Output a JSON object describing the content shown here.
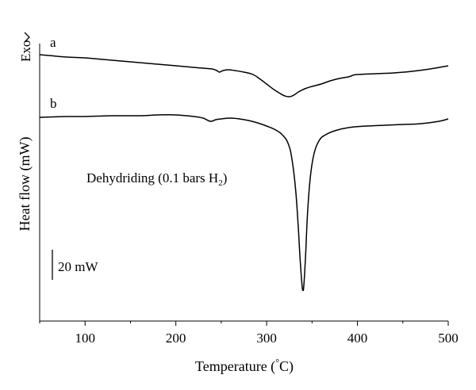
{
  "chart_data": {
    "type": "line",
    "xlabel": "Temperature (°C)",
    "xlabel_parts": {
      "pre": "Temperature (",
      "deg": "°",
      "post": "C)"
    },
    "ylabel": "Heat flow (mW)",
    "exo_label": "Exo",
    "annotation": {
      "pre": "Dehydriding (0.1 bars H",
      "sub": "2",
      "post": ")"
    },
    "scale_bar_label": "20 mW",
    "xlim": [
      50,
      500
    ],
    "x_ticks": [
      100,
      200,
      300,
      400,
      500
    ],
    "y_ticks": false,
    "grid": false,
    "series": [
      {
        "label": "a",
        "points": [
          [
            50,
            69
          ],
          [
            60,
            70
          ],
          [
            80,
            72
          ],
          [
            100,
            73
          ],
          [
            120,
            75
          ],
          [
            150,
            78
          ],
          [
            180,
            81
          ],
          [
            210,
            84
          ],
          [
            230,
            86
          ],
          [
            240,
            87
          ],
          [
            245,
            89
          ],
          [
            248,
            91
          ],
          [
            252,
            89
          ],
          [
            258,
            88
          ],
          [
            265,
            89
          ],
          [
            275,
            91
          ],
          [
            285,
            94
          ],
          [
            293,
            100
          ],
          [
            300,
            106
          ],
          [
            308,
            113
          ],
          [
            315,
            118
          ],
          [
            320,
            121
          ],
          [
            325,
            122
          ],
          [
            330,
            120
          ],
          [
            335,
            116
          ],
          [
            342,
            112
          ],
          [
            350,
            109
          ],
          [
            360,
            106
          ],
          [
            370,
            102
          ],
          [
            380,
            99
          ],
          [
            390,
            97
          ],
          [
            395,
            95
          ],
          [
            400,
            94
          ],
          [
            420,
            93
          ],
          [
            440,
            92
          ],
          [
            460,
            90
          ],
          [
            480,
            87
          ],
          [
            500,
            83
          ]
        ]
      },
      {
        "label": "b",
        "points": [
          [
            50,
            148
          ],
          [
            80,
            147
          ],
          [
            100,
            147
          ],
          [
            130,
            146
          ],
          [
            160,
            146
          ],
          [
            180,
            145
          ],
          [
            200,
            145
          ],
          [
            220,
            147
          ],
          [
            230,
            149
          ],
          [
            238,
            153
          ],
          [
            244,
            151
          ],
          [
            250,
            150
          ],
          [
            260,
            149
          ],
          [
            270,
            150
          ],
          [
            280,
            152
          ],
          [
            290,
            155
          ],
          [
            300,
            159
          ],
          [
            310,
            164
          ],
          [
            318,
            171
          ],
          [
            324,
            182
          ],
          [
            328,
            202
          ],
          [
            332,
            240
          ],
          [
            335,
            290
          ],
          [
            337,
            330
          ],
          [
            339,
            360
          ],
          [
            340,
            366
          ],
          [
            341,
            360
          ],
          [
            343,
            320
          ],
          [
            345,
            270
          ],
          [
            348,
            225
          ],
          [
            352,
            195
          ],
          [
            358,
            177
          ],
          [
            365,
            170
          ],
          [
            375,
            165
          ],
          [
            390,
            161
          ],
          [
            410,
            159
          ],
          [
            430,
            158
          ],
          [
            450,
            157
          ],
          [
            470,
            156
          ],
          [
            490,
            153
          ],
          [
            500,
            150
          ]
        ]
      }
    ]
  }
}
